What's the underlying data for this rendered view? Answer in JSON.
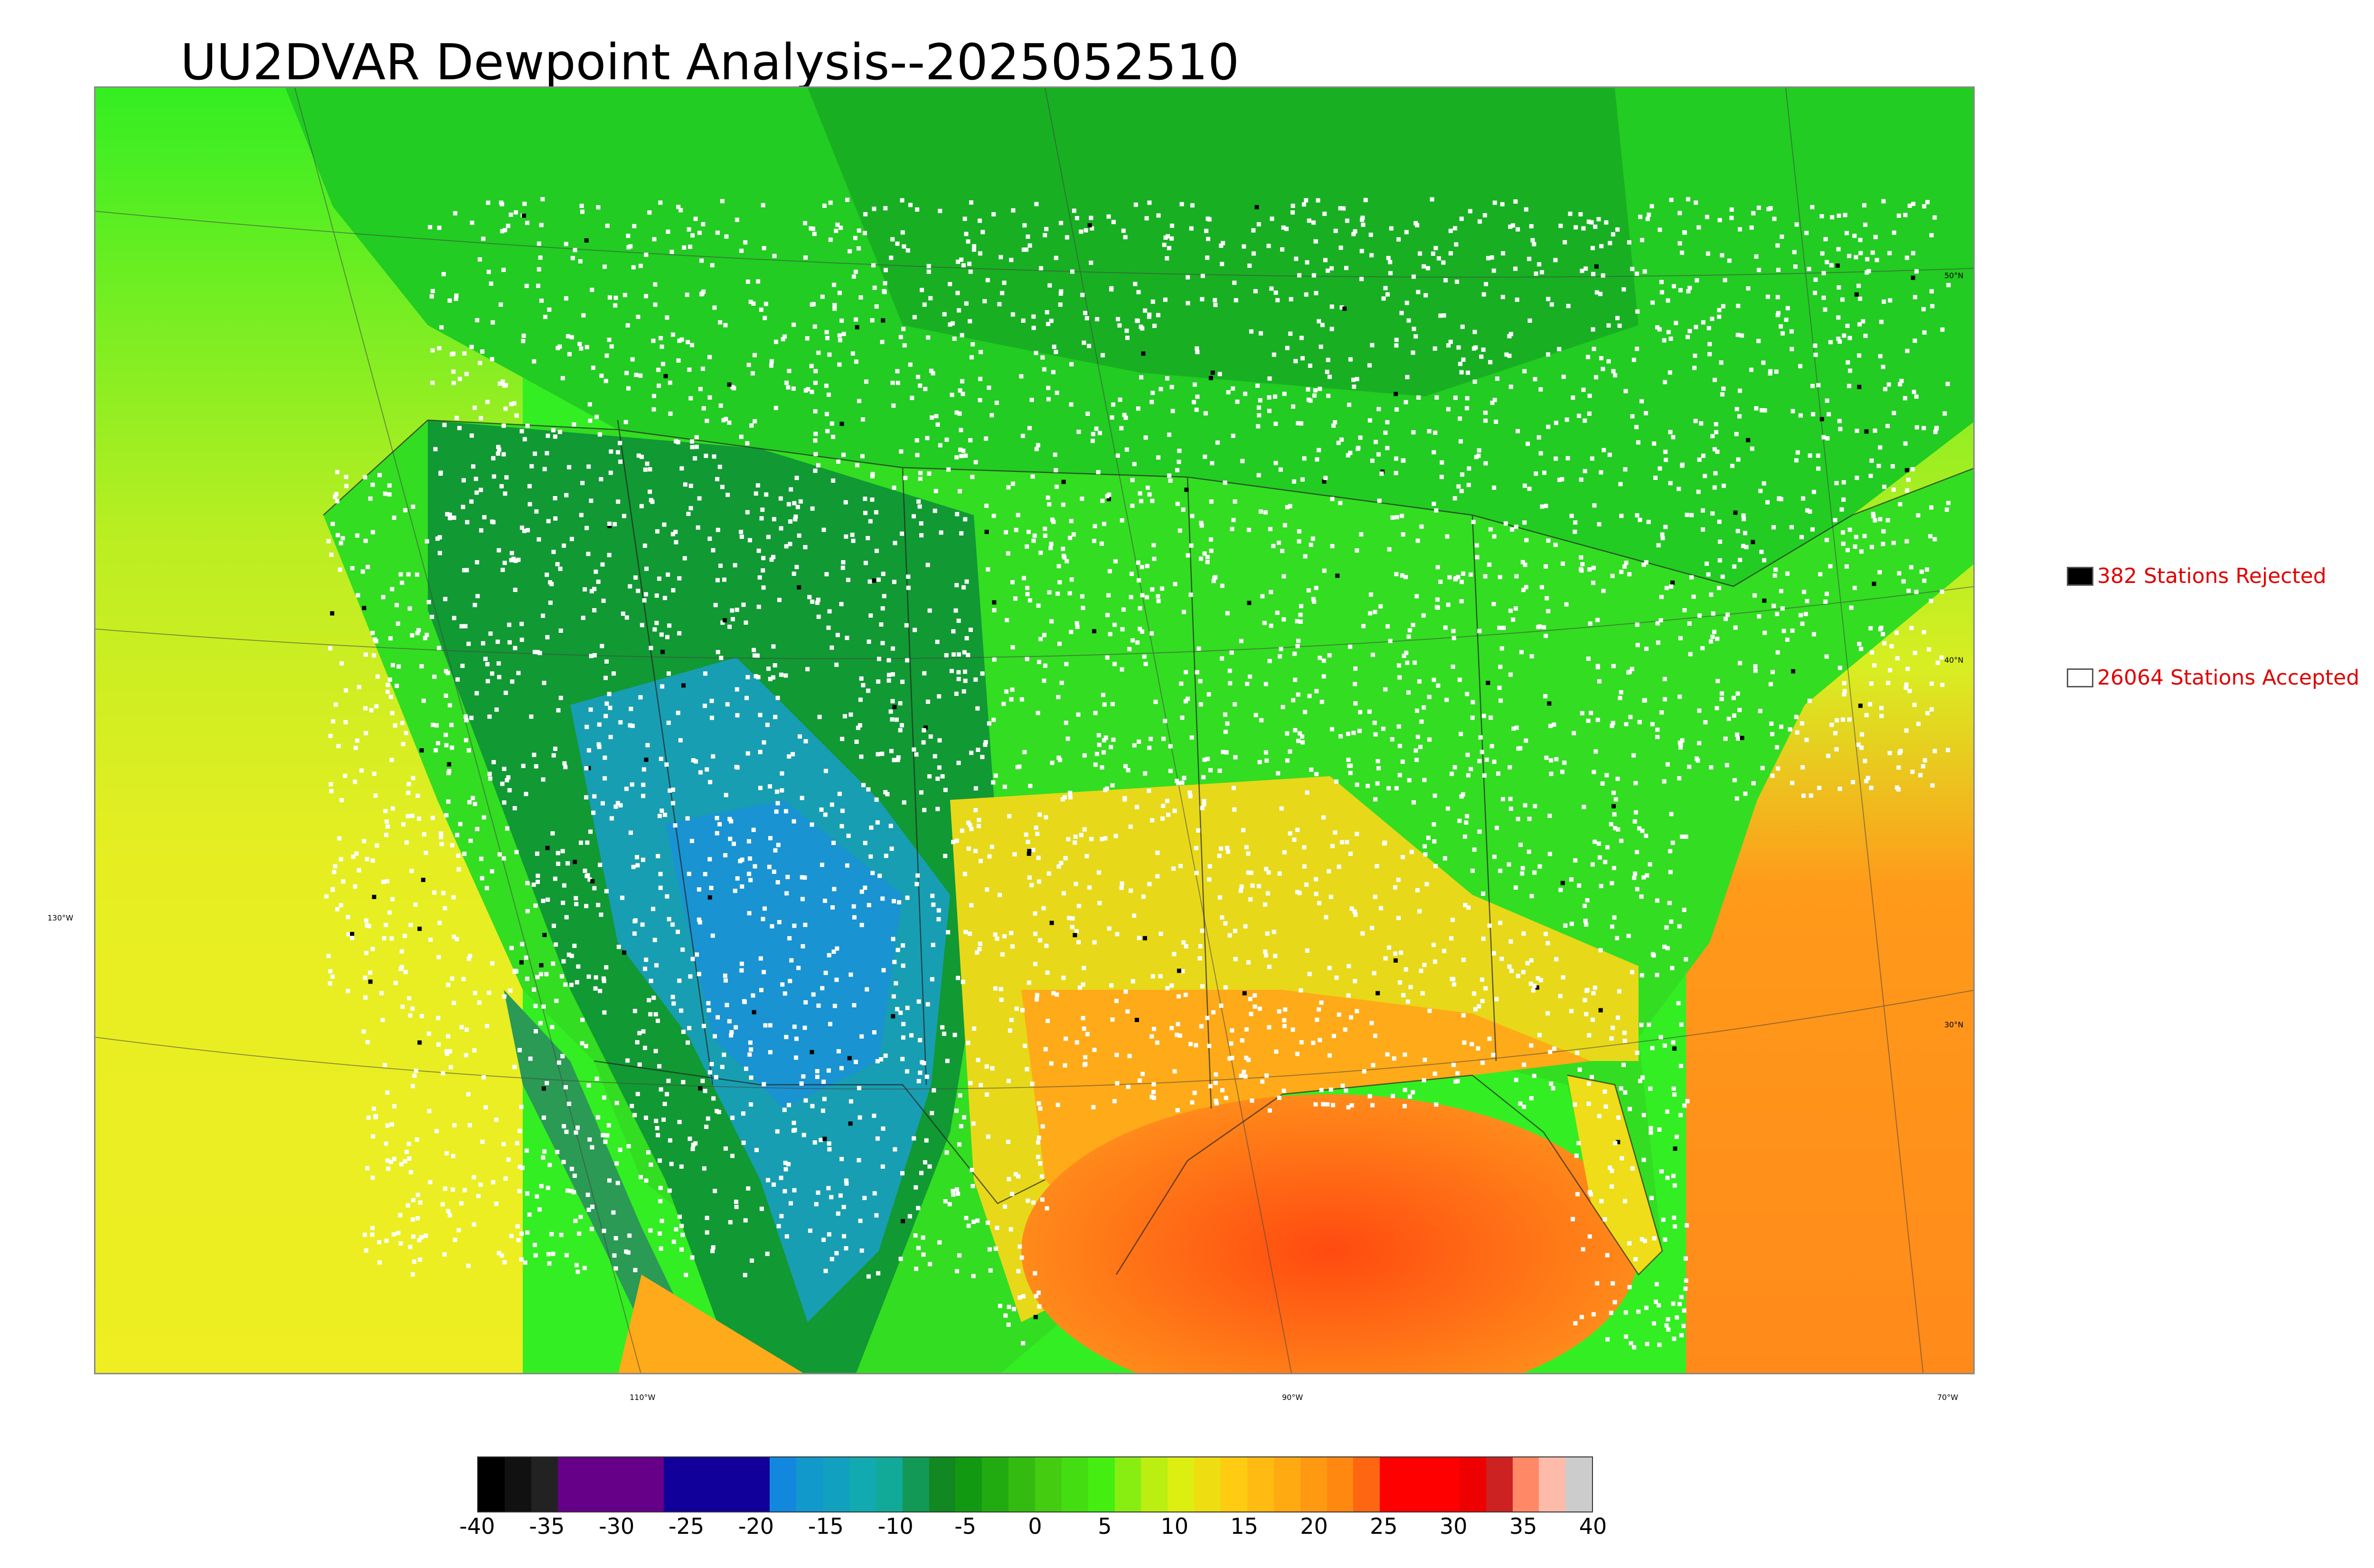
{
  "title": "UU2DVAR Dewpoint Analysis--2025052510",
  "map": {
    "longitude_labels": [
      "110°W",
      "90°W",
      "70°W"
    ],
    "latitude_labels": [
      "50°N",
      "40°N",
      "30°N"
    ],
    "left_label": "130°W",
    "colors": {
      "ocean_warm": "#ff8c1a",
      "ocean_cool": "#e6ee22",
      "land_moist": "#44dd22",
      "land_dry": "#119933",
      "arid": "#1aa0c8",
      "gulf": "#ff5a1a"
    }
  },
  "legend": {
    "rejected": {
      "label": "382 Stations Rejected",
      "color": "#000000"
    },
    "accepted": {
      "label": "26064 Stations Accepted",
      "color": "#ffffff"
    }
  },
  "colorbar": {
    "ticks": [
      "-40",
      "-35",
      "-30",
      "-25",
      "-20",
      "-15",
      "-10",
      "-5",
      "0",
      "5",
      "10",
      "15",
      "20",
      "25",
      "30",
      "35",
      "40"
    ],
    "min": -40,
    "max": 40,
    "segments": [
      "#000000",
      "#111111",
      "#222222",
      "#660088",
      "#660088",
      "#660088",
      "#660088",
      "#110099",
      "#110099",
      "#110099",
      "#110099",
      "#1188dd",
      "#1199cc",
      "#11a0c0",
      "#11aab0",
      "#11aa99",
      "#119955",
      "#118822",
      "#119911",
      "#22aa11",
      "#33bb11",
      "#44cc11",
      "#44dd11",
      "#44ee11",
      "#88ee11",
      "#bbee11",
      "#ddee11",
      "#eedd11",
      "#ffcc11",
      "#ffbb11",
      "#ffaa11",
      "#ff9911",
      "#ff8811",
      "#ff6611",
      "#ff0000",
      "#ff0000",
      "#ff0000",
      "#ee0000",
      "#cc2222",
      "#ff8866",
      "#ffbbaa",
      "#cccccc"
    ]
  }
}
